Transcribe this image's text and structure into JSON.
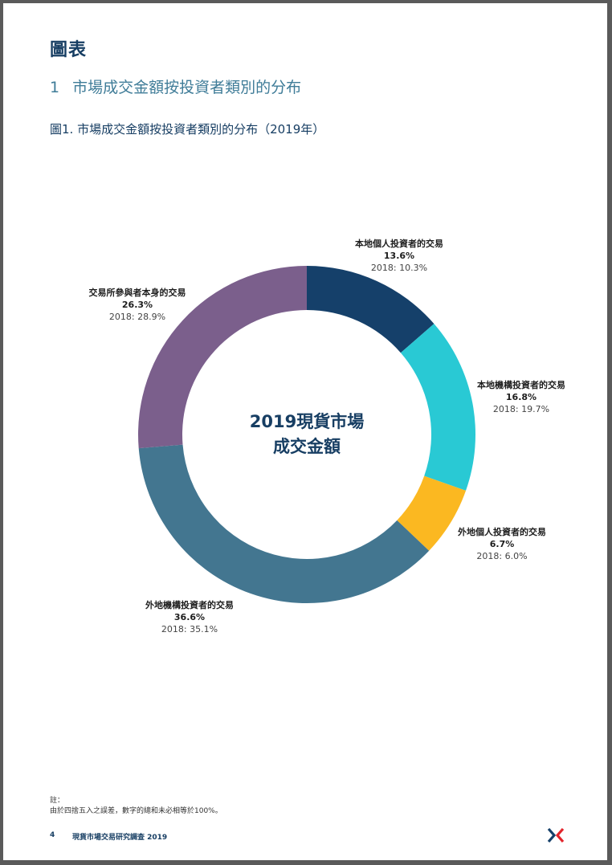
{
  "page": {
    "heading": "圖表",
    "section_number": "1",
    "section_title": "市場成交金額按投資者類別的分布",
    "figure_caption": "圖1. 市場成交金額按投資者類別的分布（2019年）",
    "note_label": "註：",
    "note_text": "由於四捨五入之誤差，數字的總和未必相等於100%。",
    "footer_page": "4",
    "footer_title": "現貨市場交易研究調查 2019"
  },
  "chart_data": {
    "type": "pie",
    "variant": "donut",
    "title": "",
    "center_label_line1": "2019現貨市場",
    "center_label_line2": "成交金額",
    "slices": [
      {
        "name": "本地個人投資者的交易",
        "value": 13.6,
        "value_label": "13.6%",
        "prev_label": "2018: 10.3%",
        "color": "#15406a"
      },
      {
        "name": "本地機構投資者的交易",
        "value": 16.8,
        "value_label": "16.8%",
        "prev_label": "2018: 19.7%",
        "color": "#29c9d4"
      },
      {
        "name": "外地個人投資者的交易",
        "value": 6.7,
        "value_label": "6.7%",
        "prev_label": "2018: 6.0%",
        "color": "#fbb821"
      },
      {
        "name": "外地機構投資者的交易",
        "value": 36.6,
        "value_label": "36.6%",
        "prev_label": "2018: 35.1%",
        "color": "#437690"
      },
      {
        "name": "交易所參與者本身的交易",
        "value": 26.3,
        "value_label": "26.3%",
        "prev_label": "2018: 28.9%",
        "color": "#7b5f8c"
      }
    ]
  }
}
